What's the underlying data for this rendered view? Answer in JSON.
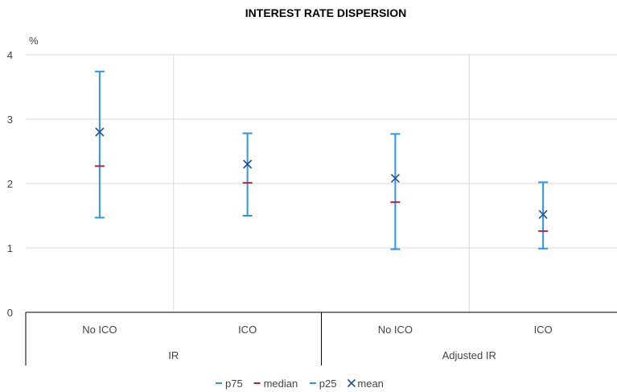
{
  "chart_data": {
    "type": "scatter",
    "title": "INTEREST RATE DISPERSION",
    "unit_label": "%",
    "ylim": [
      0,
      4
    ],
    "yticks": [
      "0",
      "1",
      "2",
      "3",
      "4"
    ],
    "grid": true,
    "legend_position": "bottom",
    "categories": [
      "No ICO",
      "ICO",
      "No ICO",
      "ICO"
    ],
    "groups": [
      {
        "label": "IR",
        "categories": [
          "No ICO",
          "ICO"
        ]
      },
      {
        "label": "Adjusted IR",
        "categories": [
          "No ICO",
          "ICO"
        ]
      }
    ],
    "series": [
      {
        "name": "p75",
        "values": [
          3.74,
          2.78,
          2.77,
          2.02
        ],
        "marker": "dash",
        "color": "#2E95E6"
      },
      {
        "name": "median",
        "values": [
          2.27,
          2.01,
          1.71,
          1.26
        ],
        "marker": "dash",
        "color": "#B22234"
      },
      {
        "name": "p25",
        "values": [
          1.47,
          1.5,
          0.98,
          0.99
        ],
        "marker": "dash",
        "color": "#2E95E6"
      },
      {
        "name": "mean",
        "values": [
          2.8,
          2.3,
          2.08,
          1.52
        ],
        "marker": "x",
        "color": "#1F4E9E"
      }
    ]
  }
}
